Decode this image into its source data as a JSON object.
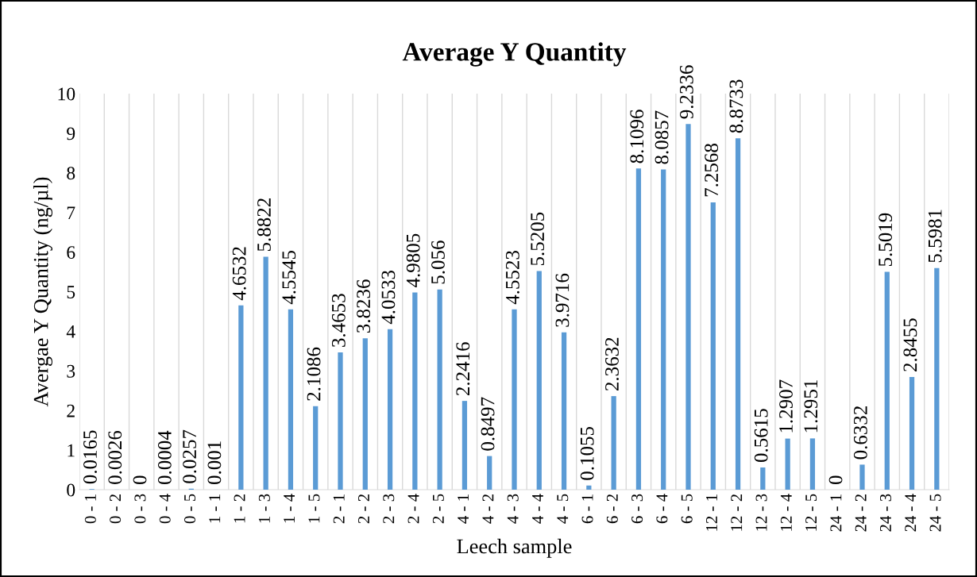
{
  "chart_data": {
    "type": "bar",
    "title": "Average Y Quantity",
    "xlabel": "Leech sample",
    "ylabel": "Avergae Y Quantity (ng/µl)",
    "categories": [
      "0 - 1",
      "0 - 2",
      "0 - 3",
      "0 - 4",
      "0 - 5",
      "1 - 1",
      "1 - 2",
      "1 - 3",
      "1 - 4",
      "1 - 5",
      "2 - 1",
      "2 - 2",
      "2 - 3",
      "2 - 4",
      "2 - 5",
      "4 - 1",
      "4 - 2",
      "4 - 3",
      "4 - 4",
      "4 - 5",
      "6 - 1",
      "6 - 2",
      "6 - 3",
      "6 - 4",
      "6 - 5",
      "12 - 1",
      "12 - 2",
      "12 - 3",
      "12 - 4",
      "12 - 5",
      "24 - 1",
      "24 - 2",
      "24 - 3",
      "24 - 4",
      "24 - 5"
    ],
    "values": [
      0.0165,
      0.0026,
      0,
      0.0004,
      0.0257,
      0.001,
      4.6532,
      5.8822,
      4.5545,
      2.1086,
      3.4653,
      3.8236,
      4.0533,
      4.9805,
      5.056,
      2.2416,
      0.8497,
      4.5523,
      5.5205,
      3.9716,
      0.1055,
      2.3632,
      8.1096,
      8.0857,
      9.2336,
      7.2568,
      8.8733,
      0.5615,
      1.2907,
      1.2951,
      0,
      0.6332,
      5.5019,
      2.8455,
      5.5981
    ],
    "color": "#5b9bd5",
    "ylim": [
      0,
      10
    ],
    "yticks": [
      0,
      1,
      2,
      3,
      4,
      5,
      6,
      7,
      8,
      9,
      10
    ],
    "grid": "x",
    "data_labels": true
  }
}
